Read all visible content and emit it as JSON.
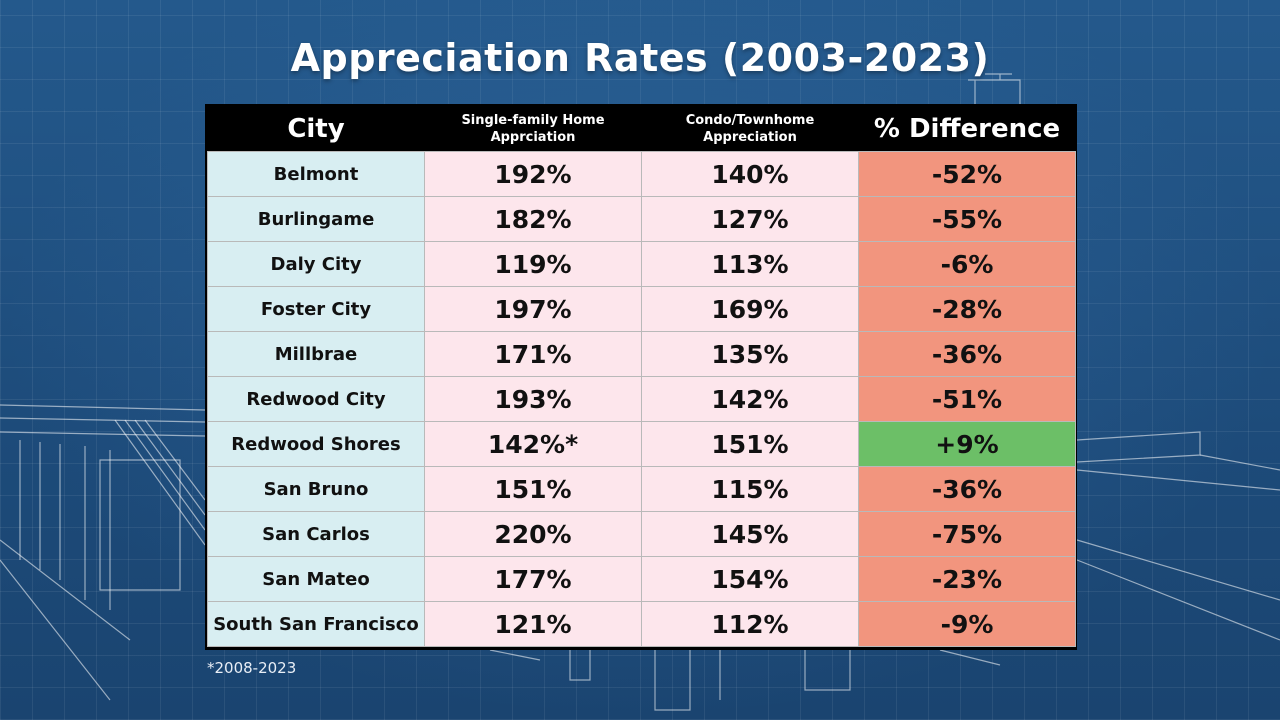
{
  "title": "Appreciation Rates (2003-2023)",
  "colors": {
    "negative": "#f2957e",
    "positive": "#6cbf67"
  },
  "chart_data": {
    "type": "table",
    "title": "Appreciation Rates (2003-2023)",
    "columns": [
      "City",
      "Single-family Home Apprciation",
      "Condo/Townhome Appreciation",
      "% Difference"
    ],
    "rows": [
      {
        "city": "Belmont",
        "sfh": "192%",
        "condo": "140%",
        "diff": "-52%",
        "sign": "negative"
      },
      {
        "city": "Burlingame",
        "sfh": "182%",
        "condo": "127%",
        "diff": "-55%",
        "sign": "negative"
      },
      {
        "city": "Daly City",
        "sfh": "119%",
        "condo": "113%",
        "diff": "-6%",
        "sign": "negative"
      },
      {
        "city": "Foster City",
        "sfh": "197%",
        "condo": "169%",
        "diff": "-28%",
        "sign": "negative"
      },
      {
        "city": "Millbrae",
        "sfh": "171%",
        "condo": "135%",
        "diff": "-36%",
        "sign": "negative"
      },
      {
        "city": "Redwood City",
        "sfh": "193%",
        "condo": "142%",
        "diff": "-51%",
        "sign": "negative"
      },
      {
        "city": "Redwood Shores",
        "sfh": "142%*",
        "condo": "151%",
        "diff": "+9%",
        "sign": "positive"
      },
      {
        "city": "San Bruno",
        "sfh": "151%",
        "condo": "115%",
        "diff": "-36%",
        "sign": "negative"
      },
      {
        "city": "San Carlos",
        "sfh": "220%",
        "condo": "145%",
        "diff": "-75%",
        "sign": "negative"
      },
      {
        "city": "San Mateo",
        "sfh": "177%",
        "condo": "154%",
        "diff": "-23%",
        "sign": "negative"
      },
      {
        "city": "South San Francisco",
        "sfh": "121%",
        "condo": "112%",
        "diff": "-9%",
        "sign": "negative"
      }
    ],
    "footnote": "*2008-2023"
  },
  "header": {
    "city": "City",
    "sfh_line1": "Single-family Home",
    "sfh_line2": "Apprciation",
    "condo_line1": "Condo/Townhome",
    "condo_line2": "Appreciation",
    "diff": "% Difference"
  }
}
